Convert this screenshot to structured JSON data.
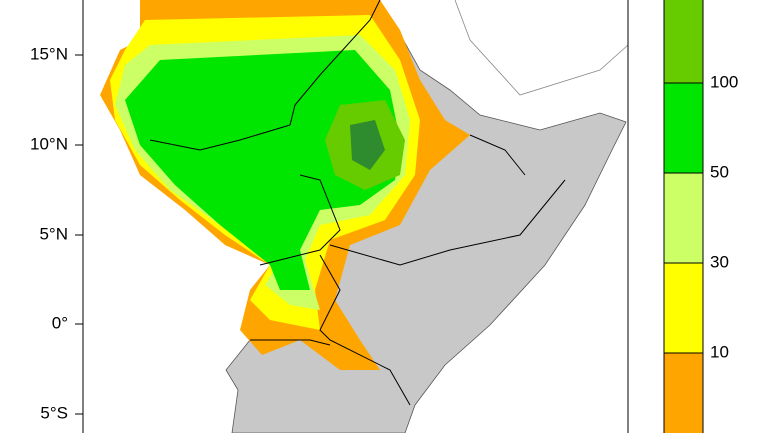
{
  "map": {
    "latitude_labels": [
      "15°N",
      "10°N",
      "5°N",
      "0°",
      "5°S"
    ],
    "colorbar_labels": [
      "100",
      "50",
      "30",
      "10"
    ]
  }
}
